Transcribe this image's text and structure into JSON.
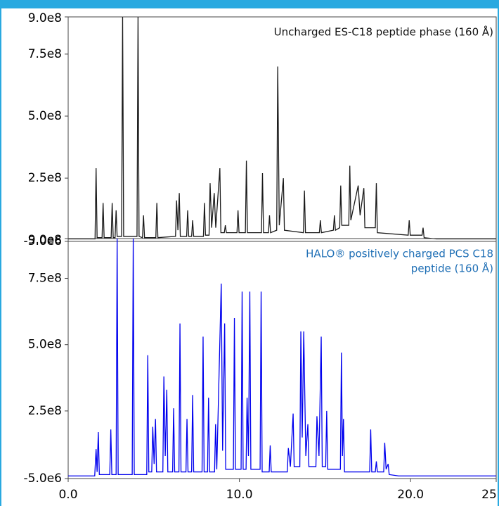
{
  "chart_data": [
    {
      "type": "line",
      "annotation": [
        "Uncharged ES-C18 peptide phase (160 Å)"
      ],
      "xlim": [
        0,
        25
      ],
      "ylim": [
        -5000000,
        900000000
      ],
      "yticks": [
        {
          "value": 900000000,
          "label": "9.0e8"
        },
        {
          "value": 750000000,
          "label": "7.5e8"
        },
        {
          "value": 500000000,
          "label": "5.0e8"
        },
        {
          "value": 250000000,
          "label": "2.5e8"
        },
        {
          "value": -5000000,
          "label": "-5.0e6"
        }
      ],
      "x": [
        0,
        1.5,
        1.57,
        1.63,
        1.69,
        1.98,
        2.04,
        2.1,
        2.51,
        2.57,
        2.63,
        2.74,
        2.8,
        2.86,
        3.12,
        3.18,
        3.24,
        4.02,
        4.08,
        4.14,
        4.34,
        4.4,
        4.46,
        5.12,
        5.18,
        5.24,
        6.27,
        6.33,
        6.41,
        6.49,
        6.55,
        6.92,
        6.98,
        7.04,
        7.21,
        7.27,
        7.33,
        7.9,
        7.96,
        8.02,
        8.23,
        8.29,
        8.38,
        8.53,
        8.62,
        8.86,
        8.92,
        9.12,
        9.18,
        9.24,
        9.86,
        9.92,
        9.98,
        10.35,
        10.41,
        10.47,
        11.29,
        11.35,
        11.41,
        11.7,
        11.76,
        11.82,
        12.18,
        12.24,
        12.33,
        12.57,
        12.63,
        13.74,
        13.8,
        13.86,
        14.67,
        14.73,
        14.79,
        15.49,
        15.55,
        15.61,
        15.86,
        15.92,
        15.98,
        16.39,
        16.45,
        16.51,
        16.94,
        17.05,
        17.27,
        17.33,
        17.94,
        18.0,
        18.06,
        19.86,
        19.92,
        19.98,
        20.67,
        20.73,
        20.79,
        21.5,
        25
      ],
      "series": [
        {
          "color": "#1a1a1a",
          "values": [
            5000000,
            5000000,
            5000000,
            290000000,
            10000000,
            10000000,
            150000000,
            10000000,
            10000000,
            150000000,
            10000000,
            10000000,
            120000000,
            15000000,
            15000000,
            900000000,
            15000000,
            15000000,
            900000000,
            15000000,
            10000000,
            100000000,
            10000000,
            10000000,
            150000000,
            10000000,
            15000000,
            160000000,
            40000000,
            190000000,
            15000000,
            15000000,
            120000000,
            15000000,
            15000000,
            80000000,
            15000000,
            15000000,
            150000000,
            20000000,
            20000000,
            230000000,
            50000000,
            190000000,
            50000000,
            290000000,
            30000000,
            30000000,
            60000000,
            30000000,
            30000000,
            120000000,
            30000000,
            30000000,
            320000000,
            30000000,
            30000000,
            270000000,
            30000000,
            30000000,
            100000000,
            30000000,
            40000000,
            700000000,
            60000000,
            250000000,
            40000000,
            30000000,
            200000000,
            30000000,
            30000000,
            80000000,
            30000000,
            40000000,
            100000000,
            40000000,
            50000000,
            220000000,
            60000000,
            60000000,
            300000000,
            80000000,
            220000000,
            100000000,
            210000000,
            50000000,
            50000000,
            230000000,
            30000000,
            20000000,
            80000000,
            20000000,
            20000000,
            50000000,
            10000000,
            5000000,
            5000000
          ]
        }
      ]
    },
    {
      "type": "line",
      "annotation": [
        "HALO® positively charged PCS C18",
        "peptide (160 Å)"
      ],
      "xlim": [
        0,
        25
      ],
      "ylim": [
        -5000000,
        900000000
      ],
      "yticks": [
        {
          "value": 900000000,
          "label": "9.0e8"
        },
        {
          "value": 750000000,
          "label": "7.5e8"
        },
        {
          "value": 500000000,
          "label": "5.0e8"
        },
        {
          "value": 250000000,
          "label": "2.5e8"
        },
        {
          "value": -5000000,
          "label": "-5.0e6"
        }
      ],
      "xticks": [
        {
          "value": 0,
          "label": "0.0"
        },
        {
          "value": 10,
          "label": "10.0"
        },
        {
          "value": 20,
          "label": "20.0"
        },
        25
      ],
      "x": [
        0,
        1.55,
        1.63,
        1.69,
        1.76,
        1.82,
        2.43,
        2.49,
        2.55,
        2.8,
        2.86,
        2.92,
        3.74,
        3.8,
        3.86,
        4.59,
        4.65,
        4.71,
        4.88,
        4.94,
        5.02,
        5.1,
        5.16,
        5.53,
        5.59,
        5.67,
        5.76,
        5.82,
        6.1,
        6.16,
        6.22,
        6.47,
        6.53,
        6.59,
        6.88,
        6.94,
        7.0,
        7.21,
        7.27,
        7.33,
        7.82,
        7.88,
        7.94,
        8.14,
        8.2,
        8.26,
        8.55,
        8.61,
        8.68,
        8.94,
        9.02,
        9.14,
        9.2,
        9.65,
        9.71,
        9.77,
        10.1,
        10.16,
        10.22,
        10.39,
        10.45,
        10.53,
        10.61,
        10.67,
        11.21,
        11.27,
        11.33,
        11.74,
        11.8,
        11.86,
        12.8,
        12.86,
        12.98,
        13.14,
        13.2,
        13.53,
        13.59,
        13.67,
        13.76,
        13.88,
        14.0,
        14.06,
        14.47,
        14.53,
        14.65,
        14.78,
        14.84,
        15.04,
        15.1,
        15.16,
        15.9,
        15.96,
        16.02,
        16.08,
        16.14,
        17.61,
        17.67,
        17.73,
        17.94,
        18.0,
        18.06,
        18.43,
        18.49,
        18.57,
        18.69,
        18.75,
        19.3,
        25
      ],
      "series": [
        {
          "color": "#0000ee",
          "values": [
            5000000,
            5000000,
            106000000,
            20000000,
            170000000,
            10000000,
            10000000,
            180000000,
            10000000,
            10000000,
            900000000,
            10000000,
            10000000,
            900000000,
            10000000,
            10000000,
            460000000,
            20000000,
            20000000,
            190000000,
            50000000,
            220000000,
            20000000,
            20000000,
            380000000,
            80000000,
            330000000,
            20000000,
            20000000,
            260000000,
            20000000,
            20000000,
            580000000,
            20000000,
            20000000,
            220000000,
            20000000,
            20000000,
            310000000,
            20000000,
            20000000,
            530000000,
            20000000,
            20000000,
            300000000,
            20000000,
            20000000,
            200000000,
            30000000,
            730000000,
            100000000,
            580000000,
            30000000,
            30000000,
            600000000,
            30000000,
            30000000,
            700000000,
            30000000,
            30000000,
            300000000,
            80000000,
            700000000,
            30000000,
            30000000,
            700000000,
            20000000,
            20000000,
            120000000,
            20000000,
            20000000,
            110000000,
            40000000,
            240000000,
            40000000,
            40000000,
            550000000,
            150000000,
            550000000,
            80000000,
            200000000,
            40000000,
            40000000,
            230000000,
            80000000,
            530000000,
            40000000,
            40000000,
            250000000,
            30000000,
            30000000,
            470000000,
            80000000,
            220000000,
            20000000,
            20000000,
            180000000,
            20000000,
            20000000,
            60000000,
            20000000,
            20000000,
            130000000,
            30000000,
            50000000,
            10000000,
            5000000,
            5000000
          ]
        }
      ]
    }
  ]
}
